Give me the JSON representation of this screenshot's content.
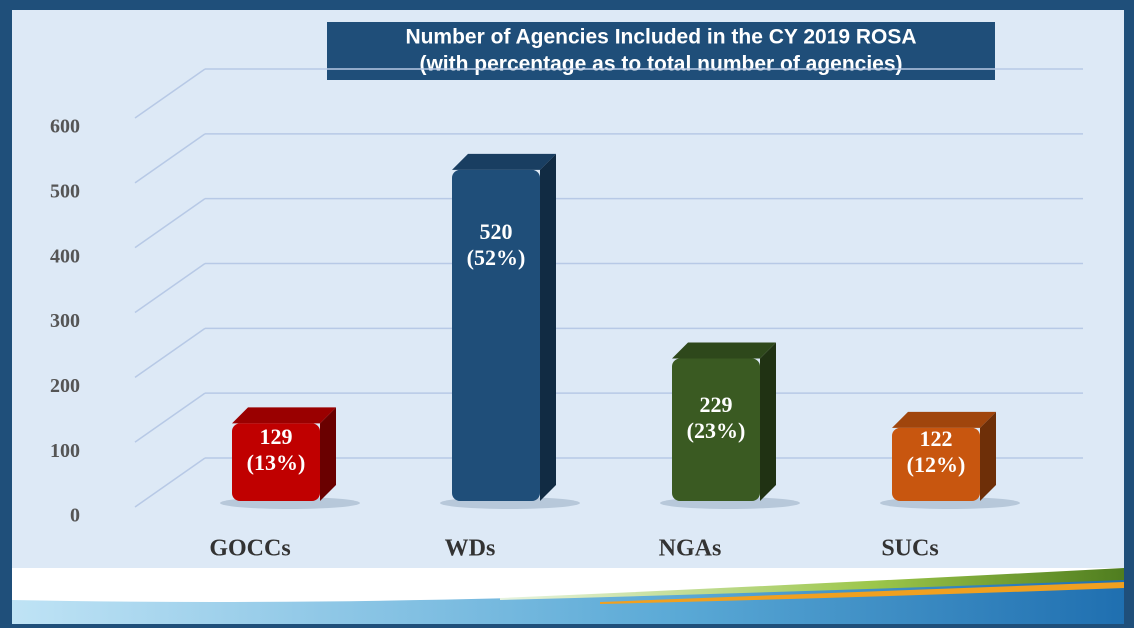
{
  "chart_data": {
    "type": "bar3d",
    "title": "Number of Agencies Included in the CY 2019 ROSA",
    "subtitle": "(with percentage as to total number of agencies)",
    "categories": [
      "GOCCs",
      "WDs",
      "NGAs",
      "SUCs"
    ],
    "values": [
      129,
      520,
      229,
      122
    ],
    "value_labels": [
      "129\n(13%)",
      "520\n(52%)",
      "229\n(23%)",
      "122\n(12%)"
    ],
    "colors": [
      "#c00000",
      "#1f4e79",
      "#3a5a22",
      "#c8560f"
    ],
    "ylim": [
      0,
      600
    ],
    "yticks": [
      0,
      100,
      200,
      300,
      400,
      500,
      600
    ],
    "grid": true
  }
}
